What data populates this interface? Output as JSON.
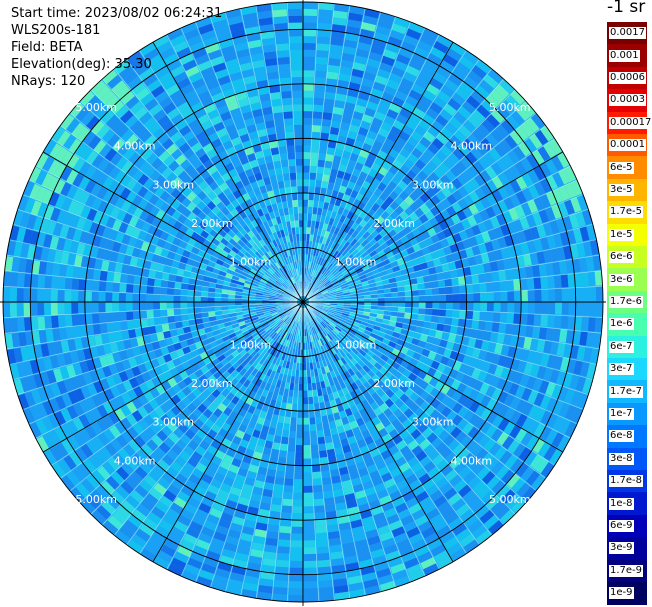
{
  "header": {
    "start_time": "Start time: 2023/08/02 06:24:31",
    "instrument": "WLS200s-181",
    "field": "Field: BETA",
    "elevation": "Elevation(deg): 35.30",
    "nrays": "NRays: 120"
  },
  "colorbar": {
    "title": "-1 sr",
    "labels": [
      "0.0017",
      "0.001",
      "0.0006",
      "0.0003",
      "0.00017",
      "0.0001",
      "6e-5",
      "3e-5",
      "1.7e-5",
      "1e-5",
      "6e-6",
      "3e-6",
      "1.7e-6",
      "1e-6",
      "6e-7",
      "3e-7",
      "1.7e-7",
      "1e-7",
      "6e-8",
      "3e-8",
      "1.7e-8",
      "1e-8",
      "6e-9",
      "3e-9",
      "1.7e-9",
      "1e-9"
    ],
    "colors": [
      "#7a0000",
      "#9a0000",
      "#c00000",
      "#e40000",
      "#ff1a00",
      "#ff5a00",
      "#ff8c00",
      "#ffb400",
      "#ffdc00",
      "#f4ff00",
      "#c8ff20",
      "#9aff50",
      "#6cff80",
      "#48ffb0",
      "#2cf0e0",
      "#1ad8ff",
      "#10b8ff",
      "#0898ff",
      "#0078ff",
      "#0058f8",
      "#0038e8",
      "#0018d0",
      "#0000b8",
      "#00009c",
      "#000080",
      "#000060"
    ]
  },
  "chart_data": {
    "type": "heatmap",
    "projection": "polar PPI scan",
    "field": "BETA",
    "units": "-1 sr",
    "n_rays": 120,
    "elevation_deg": 35.3,
    "range_rings_km": [
      1.0,
      2.0,
      3.0,
      4.0,
      5.0
    ],
    "ring_labels": [
      "1.00km",
      "2.00km",
      "3.00km",
      "4.00km",
      "5.00km"
    ],
    "value_range": [
      1e-09,
      0.0017
    ],
    "dominant_values": "mostly 1e-8 to 3e-7, patches up to 1e-6 near 5.5km NW and E"
  }
}
